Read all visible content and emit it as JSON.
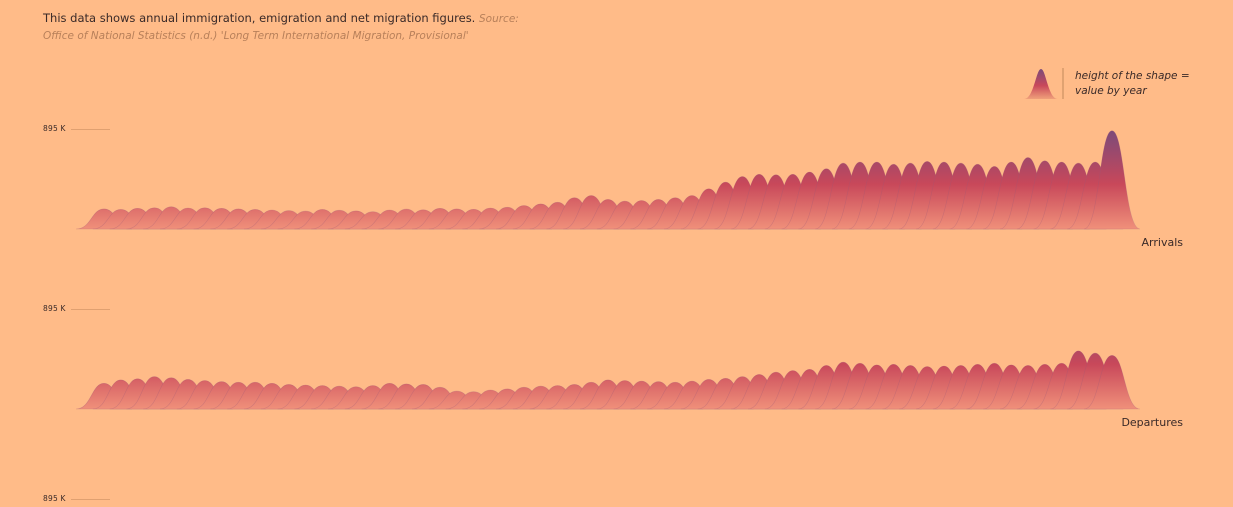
{
  "intro": {
    "lead": "This data shows annual immigration, emigration and net migration figures.",
    "source_label": "Source:",
    "source_text": "Office of National Statistics (n.d.) 'Long Term International Migration, Provisional'"
  },
  "legend": {
    "text_line1": "height of the shape =",
    "text_line2": "value by year",
    "icon": "ridge-shape-icon"
  },
  "colors": {
    "background": "#ffbb88",
    "ridge_top": "#7a4a7a",
    "ridge_mid": "#c8485a",
    "ridge_bottom": "#f0907a"
  },
  "chart_data": {
    "type": "area",
    "ymax": 895000,
    "ymax_label": "895 K",
    "series": [
      {
        "name": "Arrivals",
        "values": [
          180,
          175,
          185,
          190,
          200,
          188,
          190,
          185,
          180,
          175,
          170,
          165,
          160,
          175,
          168,
          162,
          155,
          170,
          178,
          172,
          185,
          180,
          176,
          188,
          195,
          210,
          225,
          240,
          280,
          300,
          265,
          250,
          255,
          265,
          280,
          300,
          360,
          420,
          470,
          490,
          485,
          490,
          510,
          540,
          590,
          600,
          600,
          580,
          590,
          605,
          600,
          590,
          580,
          560,
          600,
          640,
          610,
          600,
          590,
          600,
          880
        ]
      },
      {
        "name": "Departures",
        "values": [
          230,
          260,
          270,
          290,
          280,
          265,
          255,
          245,
          240,
          240,
          230,
          220,
          215,
          210,
          205,
          200,
          210,
          230,
          225,
          220,
          195,
          160,
          155,
          170,
          180,
          195,
          205,
          210,
          220,
          240,
          260,
          255,
          250,
          245,
          240,
          250,
          265,
          275,
          290,
          310,
          330,
          345,
          355,
          390,
          420,
          410,
          395,
          400,
          390,
          380,
          385,
          390,
          400,
          410,
          395,
          390,
          400,
          410,
          520,
          500,
          480
        ]
      },
      {
        "name": "",
        "values": []
      }
    ]
  }
}
